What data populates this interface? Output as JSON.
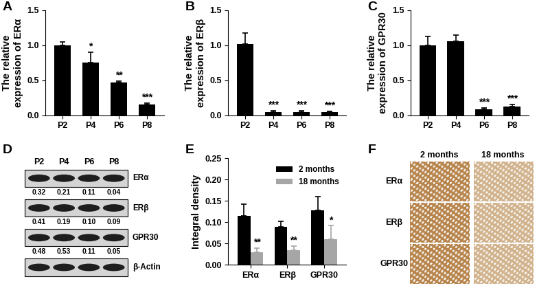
{
  "chart_data": [
    {
      "type": "bar",
      "title": "A",
      "y_label": "The relative\nexpression of ERα",
      "categories": [
        "P2",
        "P4",
        "P6",
        "P8"
      ],
      "values": [
        1.0,
        0.75,
        0.47,
        0.15
      ],
      "errors": [
        0.05,
        0.15,
        0.02,
        0.02
      ],
      "annotations": [
        null,
        "*",
        "**",
        "***"
      ],
      "color": "#000000",
      "ylim": [
        0,
        1.5
      ],
      "yticks": [
        {
          "value": 0,
          "label": "0.0"
        },
        0.5,
        {
          "value": 1,
          "label": "1.0"
        },
        1.5
      ]
    },
    {
      "type": "bar",
      "title": "B",
      "y_label": "The relative\nexpression of ERβ",
      "categories": [
        "P2",
        "P4",
        "P6",
        "P8"
      ],
      "values": [
        1.02,
        0.05,
        0.05,
        0.045
      ],
      "errors": [
        0.15,
        0.01,
        0.01,
        0.01
      ],
      "annotations": [
        "",
        "***",
        "***",
        "***"
      ],
      "color": "#000000",
      "ylim": [
        0,
        1.5
      ],
      "yticks": [
        {
          "value": 0,
          "label": "0.0"
        },
        0.5,
        {
          "value": 1,
          "label": "1.0"
        },
        1.5
      ]
    },
    {
      "type": "bar",
      "title": "C",
      "y_label": "The relative\nexpression of GPR30",
      "categories": [
        "P2",
        "P4",
        "P6",
        "P8"
      ],
      "values": [
        1.0,
        1.06,
        0.08,
        0.12
      ],
      "errors": [
        0.12,
        0.08,
        0.02,
        0.03
      ],
      "annotations": [
        null,
        null,
        "***",
        "***"
      ],
      "color": "#000000",
      "ylim": [
        0,
        1.5
      ],
      "yticks": [
        {
          "value": 0,
          "label": "0.0"
        },
        0.5,
        {
          "value": 1,
          "label": "1.0"
        },
        1.5
      ]
    },
    {
      "type": "bar",
      "title": "E",
      "y_label": "Integral density",
      "categories": [
        "ERα",
        "ERβ",
        "GPR30"
      ],
      "series": [
        {
          "name": "2 months",
          "color": "#000000",
          "values": [
            0.115,
            0.09,
            0.128
          ],
          "errors": [
            0.027,
            0.012,
            0.032
          ]
        },
        {
          "name": "18 months",
          "color": "#a6a6a6",
          "values": [
            0.03,
            0.035,
            0.06
          ],
          "errors": [
            0.01,
            0.01,
            0.033
          ],
          "annotations": [
            "**",
            "**",
            "*"
          ]
        }
      ],
      "ylim": [
        0,
        0.25
      ],
      "yticks": [
        {
          "value": 0,
          "label": "0.00"
        },
        {
          "value": 0.05,
          "label": "0.05"
        },
        {
          "value": 0.1,
          "label": "0.10"
        },
        {
          "value": 0.15,
          "label": "0.15"
        },
        {
          "value": 0.2,
          "label": "0.20"
        },
        {
          "value": 0.25,
          "label": "0.25"
        }
      ],
      "legend": "upper right"
    }
  ],
  "western_blot": {
    "title": "D",
    "lanes": [
      "P2",
      "P4",
      "P6",
      "P8"
    ],
    "rows": [
      {
        "label": "ERα",
        "values": [
          "0.32",
          "0.21",
          "0.11",
          "0.04"
        ]
      },
      {
        "label": "ERβ",
        "values": [
          "0.41",
          "0.19",
          "0.10",
          "0.09"
        ]
      },
      {
        "label": "GPR30",
        "values": [
          "0.48",
          "0.53",
          "0.11",
          "0.05"
        ]
      },
      {
        "label": "β-Actin"
      }
    ]
  },
  "ihc": {
    "title": "F",
    "columns": [
      "2 months",
      "18 months"
    ],
    "rows": [
      "ERα",
      "ERβ",
      "GPR30"
    ]
  }
}
